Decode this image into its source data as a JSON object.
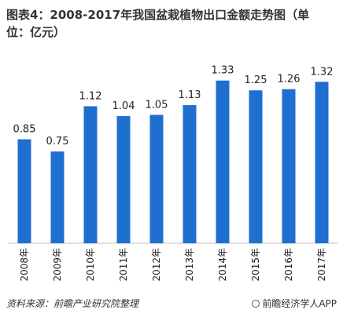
{
  "title_line1": "图表4：2008-2017年我国盆栽植物出口金额走势图（单",
  "title_line2": "位：亿元）",
  "source": "资料来源：前瞻产业研究院整理",
  "brand": "前瞻经济学人APP",
  "chart_data": {
    "type": "bar",
    "title": "图表4：2008-2017年我国盆栽植物出口金额走势图（单位：亿元）",
    "xlabel": "",
    "ylabel": "",
    "categories": [
      "2008年",
      "2009年",
      "2010年",
      "2011年",
      "2012年",
      "2013年",
      "2014年",
      "2015年",
      "2016年",
      "2017年"
    ],
    "values": [
      0.85,
      0.75,
      1.12,
      1.04,
      1.05,
      1.13,
      1.33,
      1.25,
      1.26,
      1.32
    ],
    "ylim": [
      0,
      1.45
    ],
    "grid": false,
    "bar_color": "#1f6fd1"
  }
}
